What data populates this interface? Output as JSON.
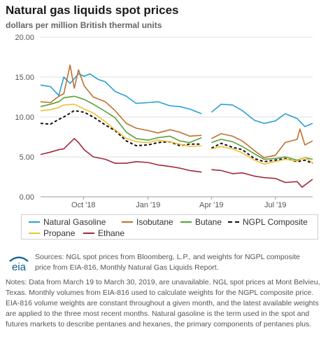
{
  "header": {
    "title": "Natural gas liquids spot prices",
    "subtitle": "dollars per million British thermal units"
  },
  "chart_data": {
    "type": "line",
    "title": "Natural gas liquids spot prices",
    "ylabel": "dollars per million British thermal units",
    "xlabel": "",
    "x_range": [
      "2018-08-01",
      "2019-08-23"
    ],
    "ylim": [
      0,
      20
    ],
    "yticks": [
      "0.00",
      "5.00",
      "10.00",
      "15.00",
      "20.00"
    ],
    "xticks": [
      {
        "label": "Oct '18",
        "date": "2018-10-01"
      },
      {
        "label": "Jan '19",
        "date": "2019-01-01"
      },
      {
        "label": "Apr '19",
        "date": "2019-04-01"
      },
      {
        "label": "Jul '19",
        "date": "2019-07-01"
      }
    ],
    "grid": "horizontal",
    "legend_position": "bottom",
    "missing_range": [
      "2019-03-19",
      "2019-03-30"
    ],
    "series": [
      {
        "name": "Natural Gasoline",
        "color": "#2a9fd6",
        "dashed": false,
        "points": [
          [
            "2018-08-01",
            14
          ],
          [
            "2018-08-15",
            13.8
          ],
          [
            "2018-08-27",
            12.7
          ],
          [
            "2018-09-03",
            15
          ],
          [
            "2018-09-12",
            14.2
          ],
          [
            "2018-09-24",
            15.4
          ],
          [
            "2018-10-02",
            15.1
          ],
          [
            "2018-10-10",
            15.4
          ],
          [
            "2018-10-22",
            14.7
          ],
          [
            "2018-11-01",
            14.4
          ],
          [
            "2018-11-15",
            13.2
          ],
          [
            "2018-12-01",
            12.6
          ],
          [
            "2018-12-15",
            11.7
          ],
          [
            "2019-01-01",
            11.8
          ],
          [
            "2019-01-15",
            11.9
          ],
          [
            "2019-02-01",
            11.4
          ],
          [
            "2019-02-15",
            11.3
          ],
          [
            "2019-03-01",
            11.0
          ],
          [
            "2019-03-18",
            10.4
          ],
          [
            "2019-04-01",
            10.6
          ],
          [
            "2019-04-15",
            11.6
          ],
          [
            "2019-05-01",
            11.5
          ],
          [
            "2019-05-15",
            10.8
          ],
          [
            "2019-06-01",
            9.6
          ],
          [
            "2019-06-15",
            9.2
          ],
          [
            "2019-07-01",
            9.5
          ],
          [
            "2019-07-15",
            10.4
          ],
          [
            "2019-08-01",
            9.8
          ],
          [
            "2019-08-12",
            8.8
          ],
          [
            "2019-08-23",
            9.2
          ]
        ]
      },
      {
        "name": "Isobutane",
        "color": "#c0702f",
        "dashed": false,
        "points": [
          [
            "2018-08-01",
            11.9
          ],
          [
            "2018-08-15",
            11.8
          ],
          [
            "2018-08-27",
            12.6
          ],
          [
            "2018-09-03",
            12.9
          ],
          [
            "2018-09-12",
            16.5
          ],
          [
            "2018-09-18",
            13.6
          ],
          [
            "2018-09-24",
            15.9
          ],
          [
            "2018-10-02",
            13.9
          ],
          [
            "2018-10-15",
            12.5
          ],
          [
            "2018-11-01",
            11.9
          ],
          [
            "2018-11-15",
            10.8
          ],
          [
            "2018-12-01",
            9.2
          ],
          [
            "2018-12-15",
            8.6
          ],
          [
            "2019-01-01",
            8.3
          ],
          [
            "2019-01-15",
            8.0
          ],
          [
            "2019-02-01",
            8.4
          ],
          [
            "2019-02-15",
            8.1
          ],
          [
            "2019-03-01",
            7.6
          ],
          [
            "2019-03-18",
            7.7
          ],
          [
            "2019-04-01",
            7.3
          ],
          [
            "2019-04-15",
            7.9
          ],
          [
            "2019-05-01",
            7.6
          ],
          [
            "2019-05-15",
            7.0
          ],
          [
            "2019-06-01",
            5.8
          ],
          [
            "2019-06-15",
            4.9
          ],
          [
            "2019-07-01",
            5.2
          ],
          [
            "2019-07-15",
            6.8
          ],
          [
            "2019-08-01",
            7.2
          ],
          [
            "2019-08-05",
            8.5
          ],
          [
            "2019-08-12",
            6.5
          ],
          [
            "2019-08-23",
            7.0
          ]
        ]
      },
      {
        "name": "Butane",
        "color": "#5aa03a",
        "dashed": false,
        "points": [
          [
            "2018-08-01",
            11.3
          ],
          [
            "2018-08-15",
            11.6
          ],
          [
            "2018-08-27",
            11.9
          ],
          [
            "2018-09-03",
            12.4
          ],
          [
            "2018-09-18",
            12.6
          ],
          [
            "2018-10-02",
            12.2
          ],
          [
            "2018-10-15",
            11.6
          ],
          [
            "2018-11-01",
            10.7
          ],
          [
            "2018-11-15",
            9.9
          ],
          [
            "2018-12-01",
            8.1
          ],
          [
            "2018-12-15",
            7.3
          ],
          [
            "2019-01-01",
            7.1
          ],
          [
            "2019-01-15",
            7.4
          ],
          [
            "2019-02-01",
            7.6
          ],
          [
            "2019-02-15",
            7.0
          ],
          [
            "2019-03-01",
            6.8
          ],
          [
            "2019-03-18",
            7.4
          ],
          [
            "2019-04-01",
            6.8
          ],
          [
            "2019-04-15",
            7.2
          ],
          [
            "2019-05-01",
            6.9
          ],
          [
            "2019-05-15",
            6.3
          ],
          [
            "2019-06-01",
            5.4
          ],
          [
            "2019-06-15",
            4.7
          ],
          [
            "2019-07-01",
            4.8
          ],
          [
            "2019-07-15",
            5.0
          ],
          [
            "2019-08-01",
            4.6
          ],
          [
            "2019-08-12",
            4.9
          ],
          [
            "2019-08-23",
            4.7
          ]
        ]
      },
      {
        "name": "NGPL Composite",
        "color": "#111111",
        "dashed": true,
        "points": [
          [
            "2018-08-01",
            9.2
          ],
          [
            "2018-08-15",
            9.1
          ],
          [
            "2018-08-27",
            9.7
          ],
          [
            "2018-09-03",
            10.0
          ],
          [
            "2018-09-18",
            10.8
          ],
          [
            "2018-10-02",
            10.6
          ],
          [
            "2018-10-15",
            10.0
          ],
          [
            "2018-11-01",
            9.0
          ],
          [
            "2018-11-15",
            8.3
          ],
          [
            "2018-12-01",
            7.0
          ],
          [
            "2018-12-15",
            6.4
          ],
          [
            "2019-01-01",
            6.5
          ],
          [
            "2019-01-15",
            6.8
          ],
          [
            "2019-02-01",
            6.9
          ],
          [
            "2019-02-15",
            6.4
          ],
          [
            "2019-03-01",
            6.6
          ],
          [
            "2019-03-18",
            6.6
          ],
          [
            "2019-04-01",
            6.1
          ],
          [
            "2019-04-15",
            6.7
          ],
          [
            "2019-05-01",
            6.2
          ],
          [
            "2019-05-15",
            5.9
          ],
          [
            "2019-06-01",
            4.8
          ],
          [
            "2019-06-15",
            4.4
          ],
          [
            "2019-07-01",
            4.6
          ],
          [
            "2019-07-15",
            4.8
          ],
          [
            "2019-08-01",
            4.4
          ],
          [
            "2019-08-12",
            4.6
          ],
          [
            "2019-08-23",
            4.2
          ]
        ]
      },
      {
        "name": "Propane",
        "color": "#f2bf35",
        "dashed": false,
        "points": [
          [
            "2018-08-01",
            10.8
          ],
          [
            "2018-08-15",
            10.9
          ],
          [
            "2018-08-27",
            11.2
          ],
          [
            "2018-09-03",
            11.5
          ],
          [
            "2018-09-18",
            11.6
          ],
          [
            "2018-10-02",
            11.0
          ],
          [
            "2018-10-15",
            10.5
          ],
          [
            "2018-11-01",
            9.4
          ],
          [
            "2018-11-15",
            8.4
          ],
          [
            "2018-12-01",
            7.3
          ],
          [
            "2018-12-15",
            6.9
          ],
          [
            "2019-01-01",
            6.8
          ],
          [
            "2019-01-15",
            7.1
          ],
          [
            "2019-02-01",
            6.9
          ],
          [
            "2019-02-15",
            6.6
          ],
          [
            "2019-03-01",
            6.3
          ],
          [
            "2019-03-18",
            6.4
          ],
          [
            "2019-04-01",
            6.0
          ],
          [
            "2019-04-15",
            6.3
          ],
          [
            "2019-05-01",
            6.0
          ],
          [
            "2019-05-15",
            5.5
          ],
          [
            "2019-06-01",
            4.6
          ],
          [
            "2019-06-15",
            4.1
          ],
          [
            "2019-07-01",
            4.4
          ],
          [
            "2019-07-15",
            4.7
          ],
          [
            "2019-08-01",
            4.5
          ],
          [
            "2019-08-12",
            4.9
          ],
          [
            "2019-08-23",
            4.3
          ]
        ]
      },
      {
        "name": "Ethane",
        "color": "#a02a3c",
        "dashed": false,
        "points": [
          [
            "2018-08-01",
            5.3
          ],
          [
            "2018-08-15",
            5.6
          ],
          [
            "2018-08-27",
            5.9
          ],
          [
            "2018-09-03",
            6.0
          ],
          [
            "2018-09-18",
            7.3
          ],
          [
            "2018-09-24",
            6.8
          ],
          [
            "2018-10-02",
            5.9
          ],
          [
            "2018-10-15",
            5.0
          ],
          [
            "2018-11-01",
            4.7
          ],
          [
            "2018-11-15",
            4.2
          ],
          [
            "2018-12-01",
            4.2
          ],
          [
            "2018-12-15",
            4.4
          ],
          [
            "2019-01-01",
            4.3
          ],
          [
            "2019-01-15",
            4.0
          ],
          [
            "2019-02-01",
            3.8
          ],
          [
            "2019-02-15",
            3.6
          ],
          [
            "2019-03-01",
            3.3
          ],
          [
            "2019-03-18",
            3.1
          ],
          [
            "2019-04-01",
            3.4
          ],
          [
            "2019-04-15",
            3.3
          ],
          [
            "2019-05-01",
            2.9
          ],
          [
            "2019-05-15",
            3.0
          ],
          [
            "2019-06-01",
            2.6
          ],
          [
            "2019-06-15",
            2.4
          ],
          [
            "2019-07-01",
            2.3
          ],
          [
            "2019-07-15",
            1.8
          ],
          [
            "2019-08-01",
            1.9
          ],
          [
            "2019-08-08",
            1.2
          ],
          [
            "2019-08-23",
            2.2
          ]
        ]
      }
    ]
  },
  "legend": {
    "items": [
      {
        "label": "Natural Gasoline",
        "color": "#2a9fd6",
        "dashed": false
      },
      {
        "label": "Isobutane",
        "color": "#c0702f",
        "dashed": false
      },
      {
        "label": "Butane",
        "color": "#5aa03a",
        "dashed": false
      },
      {
        "label": "NGPL Composite",
        "color": "#111111",
        "dashed": true
      },
      {
        "label": "Propane",
        "color": "#f2bf35",
        "dashed": false
      },
      {
        "label": "Ethane",
        "color": "#a02a3c",
        "dashed": false
      }
    ]
  },
  "logo": {
    "text": "eia",
    "icon": "eia-logo-icon",
    "color": "#0e5d8f"
  },
  "footer": {
    "sources": "Sources: NGL spot prices from Bloomberg, L.P., and weights for NGPL composite price from EIA-816, Monthly Natural Gas Liquids Report.",
    "notes": "Notes: Data from March 19 to March 30, 2019, are unavailable. NGL spot prices at Mont Belvieu, Texas. Monthly volumes from EIA-816 used to calculate weights for the NGPL composite price. EIA-816 volume weights are constant throughout a given month, and the latest available weights are applied to the three most recent months. Natural gasoline is the term used in the spot and futures markets to describe pentanes and hexanes, the primary components of pentanes plus."
  }
}
